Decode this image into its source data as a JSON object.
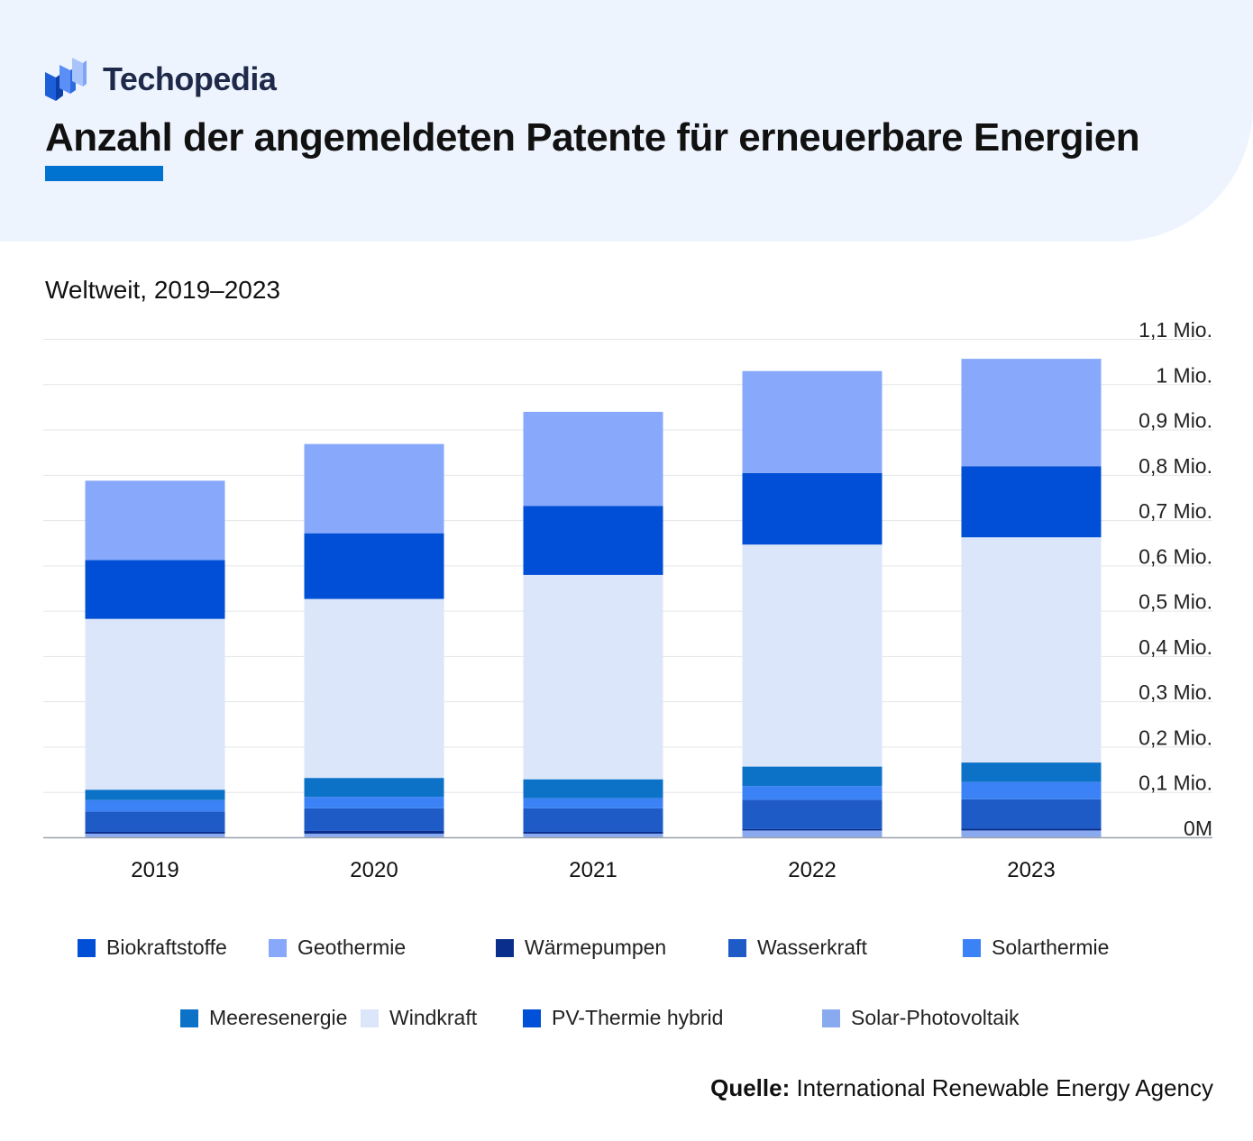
{
  "brand": {
    "name": "Techopedia",
    "logo_icon": "techopedia-logo-icon"
  },
  "header": {
    "title": "Anzahl der angemeldeten Patente für erneuerbare Energien",
    "accent_color": "#0073d1",
    "background_color": "#eef4fe"
  },
  "subtitle": "Weltweit, 2019–2023",
  "source": {
    "label": "Quelle:",
    "text": " International Renewable Energy Agency"
  },
  "chart_data": {
    "type": "bar",
    "stacked": true,
    "title": "Anzahl der angemeldeten Patente für erneuerbare Energien",
    "subtitle": "Weltweit, 2019–2023",
    "xlabel": "",
    "ylabel": "",
    "ylim": [
      0,
      1.1
    ],
    "y_unit": "Mio.",
    "y_axis_position": "right",
    "grid": true,
    "legend_position": "bottom",
    "categories": [
      "2019",
      "2020",
      "2021",
      "2022",
      "2023"
    ],
    "y_ticks": [
      "0M",
      "0,1 Mio.",
      "0,2 Mio.",
      "0,3 Mio.",
      "0,4 Mio.",
      "0,5 Mio.",
      "0,6 Mio.",
      "0,7 Mio.",
      "0,8 Mio.",
      "0,9 Mio.",
      "1 Mio.",
      "1,1 Mio."
    ],
    "series": [
      {
        "name": "Solar-Photovoltaik",
        "color": "#8aaaf0",
        "values": [
          0.008,
          0.008,
          0.008,
          0.015,
          0.015
        ]
      },
      {
        "name": "Wärmepumpen",
        "color": "#0a2e8c",
        "values": [
          0.004,
          0.006,
          0.004,
          0.003,
          0.004
        ]
      },
      {
        "name": "Wasserkraft",
        "color": "#1e5bc6",
        "values": [
          0.045,
          0.05,
          0.052,
          0.065,
          0.065
        ]
      },
      {
        "name": "Solarthermie",
        "color": "#3b82f6",
        "values": [
          0.025,
          0.025,
          0.022,
          0.03,
          0.038
        ]
      },
      {
        "name": "Meeresenergie",
        "color": "#0c72c8",
        "values": [
          0.023,
          0.042,
          0.042,
          0.043,
          0.043
        ]
      },
      {
        "name": "Windkraft",
        "color": "#dbe6fb",
        "values": [
          0.377,
          0.395,
          0.451,
          0.49,
          0.497
        ]
      },
      {
        "name": "PV-Thermie hybrid",
        "color": "#0050d8",
        "values": [
          0.0,
          0.0,
          0.0,
          0.0,
          0.0
        ]
      },
      {
        "name": "Biokraftstoffe",
        "color": "#004fd6",
        "values": [
          0.13,
          0.145,
          0.152,
          0.158,
          0.157
        ]
      },
      {
        "name": "Geothermie",
        "color": "#87a8fb",
        "values": [
          0.175,
          0.197,
          0.208,
          0.225,
          0.237
        ]
      }
    ]
  },
  "legend": {
    "items": [
      {
        "name": "Biokraftstoffe",
        "color": "#004fd6"
      },
      {
        "name": "Geothermie",
        "color": "#87a8fb"
      },
      {
        "name": "Wärmepumpen",
        "color": "#0a2e8c"
      },
      {
        "name": "Wasserkraft",
        "color": "#1e5bc6"
      },
      {
        "name": "Solarthermie",
        "color": "#3b82f6"
      },
      {
        "name": "Meeresenergie",
        "color": "#0c72c8"
      },
      {
        "name": "Windkraft",
        "color": "#dbe6fb"
      },
      {
        "name": "PV-Thermie hybrid",
        "color": "#0050d8"
      },
      {
        "name": "Solar-Photovoltaik",
        "color": "#8aaaf0"
      }
    ]
  }
}
